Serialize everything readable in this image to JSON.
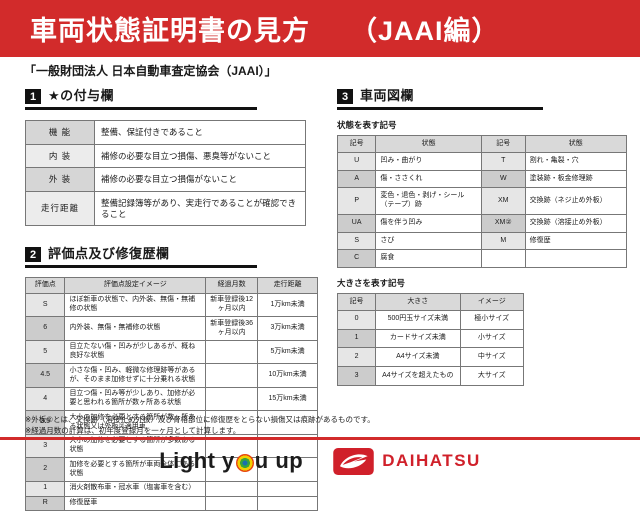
{
  "banner": {
    "title": "車両状態証明書の見方",
    "edition": "（JAAI編）"
  },
  "subtitle": "「一般財団法人 日本自動車査定協会（JAAI）」",
  "colors": {
    "banner_red": "#d22b2b",
    "daihatsu_red": "#d0202a",
    "table_header_gray": "#d9d9d9"
  },
  "sections": {
    "one": {
      "num": "1",
      "title": "★の付与欄"
    },
    "two": {
      "num": "2",
      "title": "評価点及び修復歴欄"
    },
    "three": {
      "num": "3",
      "title": "車両図欄"
    }
  },
  "star_table": {
    "rows": [
      [
        "機 能",
        "整備、保証付きであること"
      ],
      [
        "内 装",
        "補修の必要な目立つ損傷、悪臭等がないこと"
      ],
      [
        "外 装",
        "補修の必要な目立つ損傷がないこと"
      ],
      [
        "走行距離",
        "整備記録簿等があり、実走行であることが確認できること"
      ]
    ]
  },
  "eval_table": {
    "headers": [
      "評価点",
      "評価点設定イメージ",
      "経過月数",
      "走行距離"
    ],
    "rows": [
      [
        "S",
        "ほぼ新車の状態で、内外装、無傷・無補修の状態",
        "新車登録後12ヶ月以内",
        "1万km未満"
      ],
      [
        "6",
        "内外装、無傷・無補修の状態",
        "新車登録後36ヶ月以内",
        "3万km未満"
      ],
      [
        "5",
        "目立たない傷・凹みが少しあるが、概ね良好な状態",
        "",
        "5万km未満"
      ],
      [
        "4.5",
        "小さな傷・凹み、軽微な修理跡等があるが、そのまま加修せずに十分乗れる状態",
        "",
        "10万km未満"
      ],
      [
        "4",
        "目立つ傷・凹み等が少しあり、加修が必要と思われる箇所が数ヶ所ある状態",
        "",
        "15万km未満"
      ],
      [
        "3.5",
        "大小の加修を必要とする箇所が数ヶ所ある状態又は外板②適用車",
        "",
        ""
      ],
      [
        "3",
        "大小の加修を必要とする箇所が多数ある状態",
        "",
        ""
      ],
      [
        "2",
        "加修を必要とする箇所が車両全体にある状態",
        "",
        ""
      ],
      [
        "1",
        "消火剤散布車・冠水車（塩害車を含む）",
        "",
        ""
      ],
      [
        "R",
        "修復歴車",
        "",
        ""
      ]
    ]
  },
  "symbol_table": {
    "label": "状態を表す記号",
    "headers": [
      "記号",
      "状態",
      "記号",
      "状態"
    ],
    "rows": [
      [
        "U",
        "凹み・曲がり",
        "T",
        "割れ・亀裂・穴"
      ],
      [
        "A",
        "傷・ささくれ",
        "W",
        "塗装跡・板金修理跡"
      ],
      [
        "P",
        "変色・退色・剥げ・シール（テープ）跡",
        "XM",
        "交換跡（ネジ止め外板）"
      ],
      [
        "UA",
        "傷を伴う凹み",
        "XM②",
        "交換跡（溶接止め外板）"
      ],
      [
        "S",
        "さび",
        "M",
        "修復歴"
      ],
      [
        "C",
        "腐食",
        "",
        ""
      ]
    ]
  },
  "size_table": {
    "label": "大きさを表す記号",
    "headers": [
      "記号",
      "大きさ",
      "イメージ"
    ],
    "rows": [
      [
        "0",
        "500円玉サイズ未満",
        "極小サイズ"
      ],
      [
        "1",
        "カードサイズ未満",
        "小サイズ"
      ],
      [
        "2",
        "A4サイズ未満",
        "中サイズ"
      ],
      [
        "3",
        "A4サイズを超えたもの",
        "大サイズ"
      ]
    ]
  },
  "notes": [
    "※外板②とは、交換跡（溶接止め外板）及び骨格部位に修復歴をとらない損傷又は痕跡があるものです。",
    "※経過月数の計算は、初年度登録月を一ヶ月として計算します。"
  ],
  "footer": {
    "slogan_part1": "Light y",
    "slogan_part2": "u up",
    "brand": "DAIHATSU"
  }
}
